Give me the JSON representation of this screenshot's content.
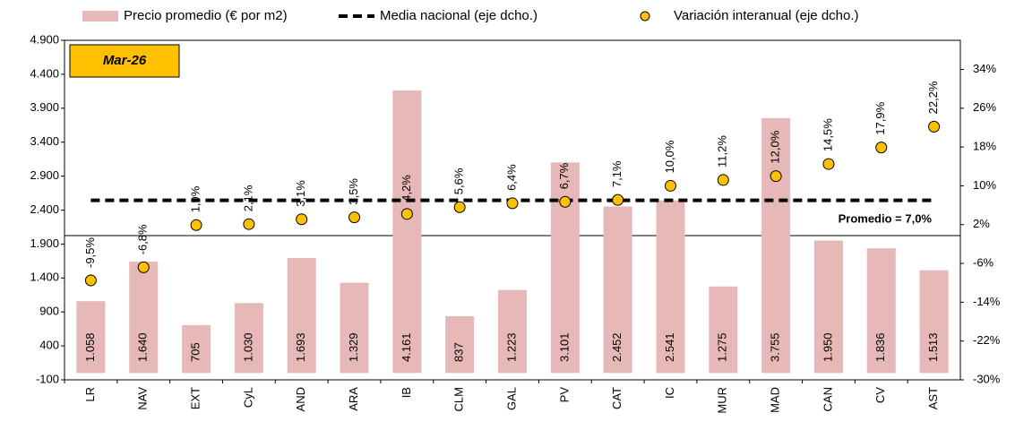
{
  "chart_data": {
    "type": "bar",
    "categories": [
      "LR",
      "NAV",
      "EXT",
      "CyL",
      "AND",
      "ARA",
      "IB",
      "CLM",
      "GAL",
      "PV",
      "CAT",
      "IC",
      "MUR",
      "MAD",
      "CAN",
      "CV",
      "AST"
    ],
    "series": [
      {
        "name": "Precio promedio (€ por m2)",
        "type": "bar",
        "color": "#e6b8b7",
        "values": [
          1058,
          1640,
          705,
          1030,
          1693,
          1329,
          4161,
          837,
          1223,
          3101,
          2452,
          2541,
          1275,
          3755,
          1950,
          1836,
          1513
        ],
        "value_labels": [
          "1.058",
          "1.640",
          "705",
          "1.030",
          "1.693",
          "1.329",
          "4.161",
          "837",
          "1.223",
          "3.101",
          "2.452",
          "2.541",
          "1.275",
          "3.755",
          "1.950",
          "1.836",
          "1.513"
        ]
      },
      {
        "name": "Media nacional (eje dcho.)",
        "type": "line",
        "axis": "y2",
        "color": "#000000",
        "values": [
          7.0,
          7.0,
          7.0,
          7.0,
          7.0,
          7.0,
          7.0,
          7.0,
          7.0,
          7.0,
          7.0,
          7.0,
          7.0,
          7.0,
          7.0,
          7.0,
          7.0
        ]
      },
      {
        "name": "Variación interanual (eje dcho.)",
        "type": "scatter",
        "axis": "y2",
        "color": "#ffc000",
        "values": [
          -9.5,
          -6.8,
          1.9,
          2.1,
          3.1,
          3.5,
          4.2,
          5.6,
          6.4,
          6.7,
          7.1,
          10.0,
          11.2,
          12.0,
          14.5,
          17.9,
          22.2
        ],
        "value_labels": [
          "-9,5%",
          "-6,8%",
          "1,9%",
          "2,1%",
          "3,1%",
          "3,5%",
          "4,2%",
          "5,6%",
          "6,4%",
          "6,7%",
          "7,1%",
          "10,0%",
          "11,2%",
          "12,0%",
          "14,5%",
          "17,9%",
          "22,2%"
        ]
      }
    ],
    "ylim": [
      -100,
      4900
    ],
    "yticks": [
      {
        "value": -100,
        "label": "-100"
      },
      {
        "value": 400,
        "label": "400"
      },
      {
        "value": 900,
        "label": "900"
      },
      {
        "value": 1400,
        "label": "1.400"
      },
      {
        "value": 1900,
        "label": "1.900"
      },
      {
        "value": 2400,
        "label": "2.400"
      },
      {
        "value": 2900,
        "label": "2.900"
      },
      {
        "value": 3400,
        "label": "3.400"
      },
      {
        "value": 3900,
        "label": "3.900"
      },
      {
        "value": 4400,
        "label": "4.400"
      },
      {
        "value": 4900,
        "label": "4.900"
      }
    ],
    "y2lim": [
      -30,
      40
    ],
    "y2ticks": [
      {
        "value": -30,
        "label": "-30%"
      },
      {
        "value": -22,
        "label": "-22%"
      },
      {
        "value": -14,
        "label": "-14%"
      },
      {
        "value": -6,
        "label": "-6%"
      },
      {
        "value": 2,
        "label": "2%"
      },
      {
        "value": 10,
        "label": "10%"
      },
      {
        "value": 18,
        "label": "18%"
      },
      {
        "value": 26,
        "label": "26%"
      },
      {
        "value": 34,
        "label": "34%"
      }
    ],
    "annotations": [
      "Mar-26",
      "Promedio = 7,0%"
    ],
    "grid": false,
    "legend": "top"
  }
}
